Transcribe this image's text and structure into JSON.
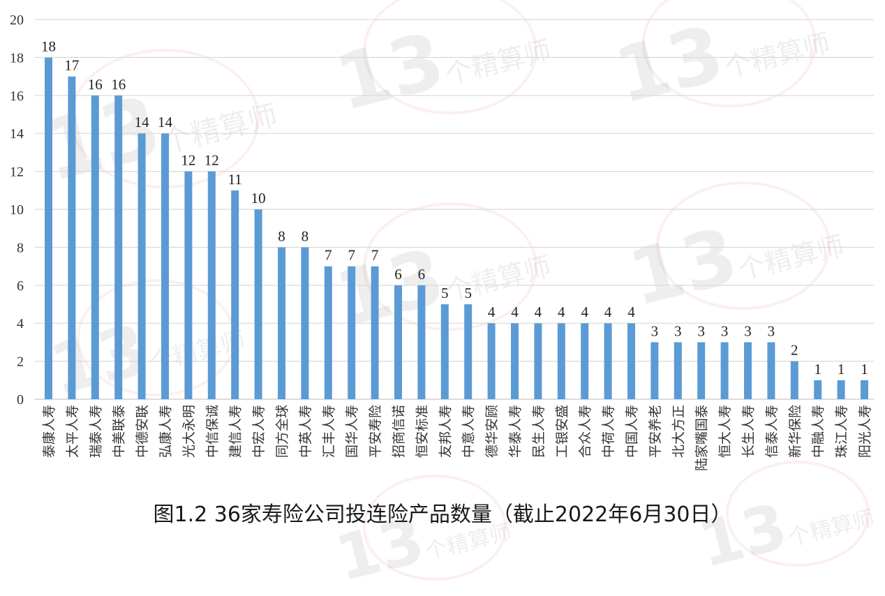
{
  "chart_data": {
    "type": "bar",
    "title": "图1.2  36家寿险公司投连险产品数量（截止2022年6月30日）",
    "xlabel": "",
    "ylabel": "",
    "ylim": [
      0,
      20
    ],
    "yticks": [
      0,
      2,
      4,
      6,
      8,
      10,
      12,
      14,
      16,
      18,
      20
    ],
    "grid": true,
    "legend": "none",
    "bar_color": "#5b9bd5",
    "categories": [
      "泰康人寿",
      "太平人寿",
      "瑞泰人寿",
      "中美联泰",
      "中德安联",
      "弘康人寿",
      "光大永明",
      "中信保诚",
      "建信人寿",
      "中宏人寿",
      "同方全球",
      "中英人寿",
      "汇丰人寿",
      "国华人寿",
      "平安寿险",
      "招商信诺",
      "恒安标准",
      "友邦人寿",
      "中意人寿",
      "德华安顾",
      "华泰人寿",
      "民生人寿",
      "工银安盛",
      "合众人寿",
      "中荷人寿",
      "中国人寿",
      "平安养老",
      "北大方正",
      "陆家嘴国泰",
      "恒大人寿",
      "长生人寿",
      "信泰人寿",
      "新华保险",
      "中融人寿",
      "珠江人寿",
      "阳光人寿"
    ],
    "values": [
      18,
      17,
      16,
      16,
      14,
      14,
      12,
      12,
      11,
      10,
      8,
      8,
      7,
      7,
      7,
      6,
      6,
      5,
      5,
      4,
      4,
      4,
      4,
      4,
      4,
      4,
      3,
      3,
      3,
      3,
      3,
      3,
      2,
      1,
      1,
      1
    ]
  },
  "watermark": {
    "text_number": "13",
    "text_name": "个精算师"
  }
}
